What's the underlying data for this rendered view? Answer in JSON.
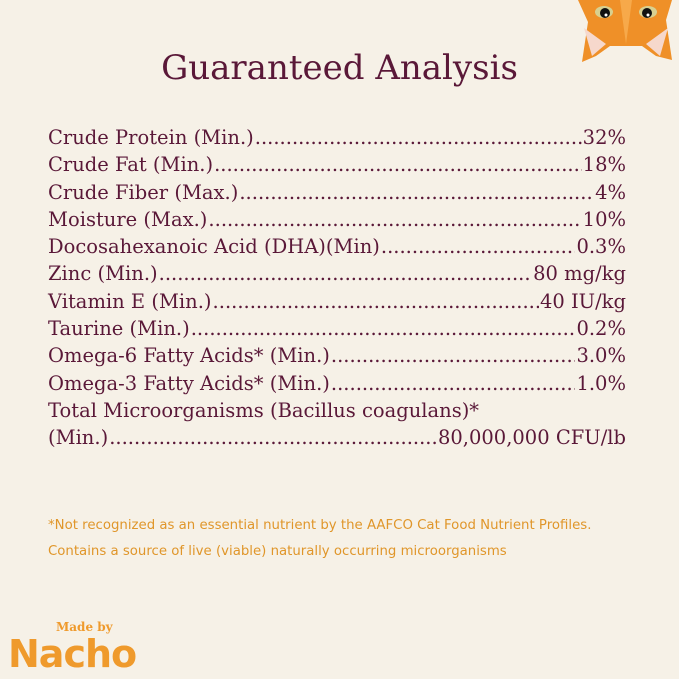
{
  "title": "Guaranteed Analysis",
  "rows": [
    {
      "label": "Crude Protein (Min.)",
      "value": "32%"
    },
    {
      "label": "Crude Fat (Min.)",
      "value": "18%"
    },
    {
      "label": "Crude Fiber (Max.)",
      "value": "4%"
    },
    {
      "label": "Moisture (Max.)",
      "value": "10%"
    },
    {
      "label": "Docosahexanoic Acid (DHA)(Min)",
      "value": "0.3%"
    },
    {
      "label": "Zinc (Min.)",
      "value": "80 mg/kg"
    },
    {
      "label": "Vitamin E (Min.)",
      "value": "40 IU/kg"
    },
    {
      "label": "Taurine (Min.)",
      "value": "0.2%"
    },
    {
      "label": "Omega-6 Fatty Acids* (Min.)",
      "value": "3.0%"
    },
    {
      "label": "Omega-3 Fatty Acids* (Min.)",
      "value": "1.0%"
    }
  ],
  "last_row": {
    "line1": "Total Microorganisms (Bacillus coagulans)*",
    "label": "(Min.)",
    "value": "80,000,000 CFU/lb"
  },
  "notes": [
    "*Not recognized as an essential nutrient by the AAFCO Cat Food Nutrient Profiles.",
    "Contains a source of live (viable) naturally occurring microorganisms"
  ],
  "logo": {
    "made_by": "Made by",
    "brand": "Nacho"
  },
  "colors": {
    "text": "#5a1838",
    "accent": "#e0962a",
    "background": "#f6f1e7"
  }
}
